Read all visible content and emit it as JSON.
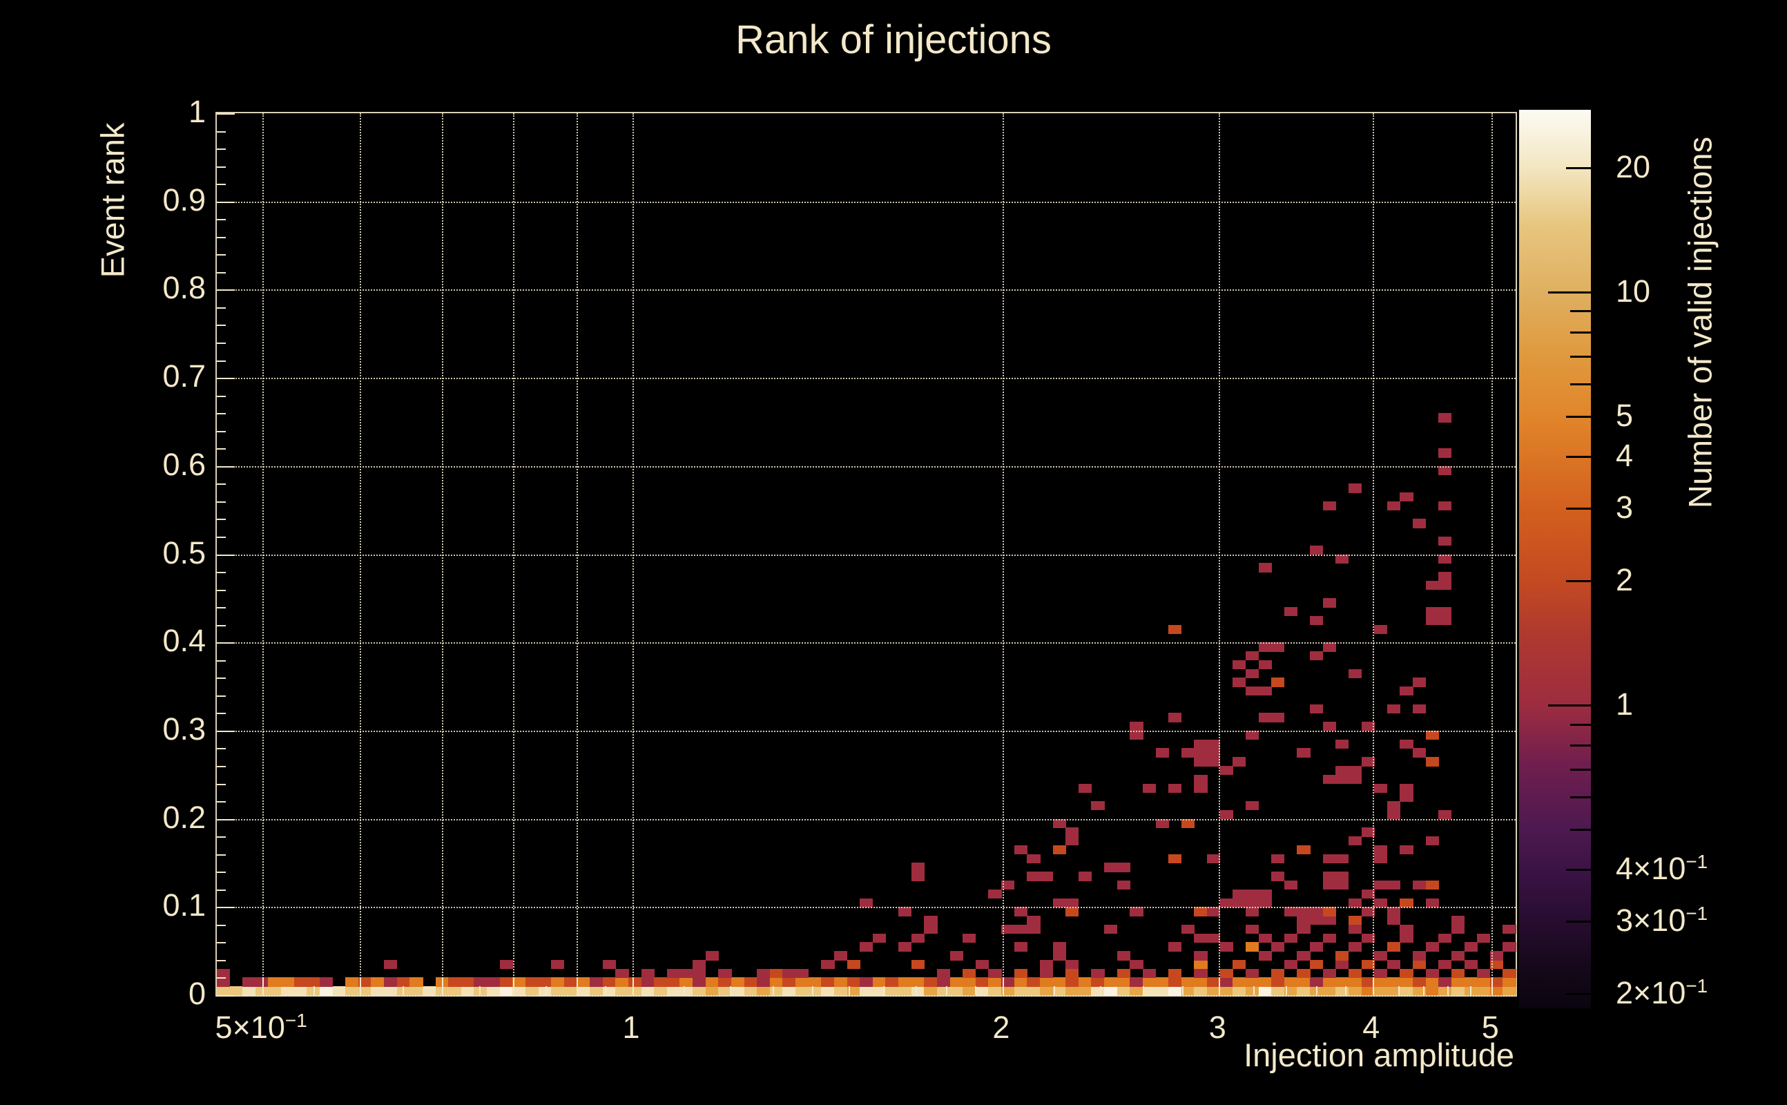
{
  "page": {
    "background": "#000000",
    "text_color": "#f3e8c9"
  },
  "chart_data": {
    "type": "heatmap",
    "title": "Rank of injections",
    "xlabel": "Injection amplitude",
    "ylabel": "Event rank",
    "zlabel": "Number of valid injections",
    "x_scale": "log",
    "x_range": [
      0.459,
      5.23
    ],
    "y_scale": "linear",
    "y_range": [
      0,
      1
    ],
    "z_scale": "log",
    "z_range": [
      0.184,
      27.5
    ],
    "grid": "dotted",
    "legend_position": "right-colorbar",
    "x_ticks": [
      {
        "v": 0.5,
        "m": "5×10",
        "e": "−1"
      },
      {
        "v": 1,
        "m": "1"
      },
      {
        "v": 2,
        "m": "2"
      },
      {
        "v": 3,
        "m": "3"
      },
      {
        "v": 4,
        "m": "4"
      },
      {
        "v": 5,
        "m": "5"
      }
    ],
    "x_grid": [
      0.5,
      0.6,
      0.7,
      0.8,
      0.9,
      1,
      2,
      3,
      4,
      5
    ],
    "x_minor_ticks": [
      0.55,
      0.65,
      0.75,
      0.85,
      0.95,
      1.1,
      1.2,
      1.3,
      1.4,
      1.5,
      1.6,
      1.7,
      1.8,
      1.9,
      2.2,
      2.4,
      2.6,
      2.8,
      3.2,
      3.4,
      3.6,
      3.8,
      4.2,
      4.4,
      4.6,
      4.8
    ],
    "y_ticks": [
      {
        "v": 0,
        "m": "0"
      },
      {
        "v": 0.1,
        "m": "0.1"
      },
      {
        "v": 0.2,
        "m": "0.2"
      },
      {
        "v": 0.3,
        "m": "0.3"
      },
      {
        "v": 0.4,
        "m": "0.4"
      },
      {
        "v": 0.5,
        "m": "0.5"
      },
      {
        "v": 0.6,
        "m": "0.6"
      },
      {
        "v": 0.7,
        "m": "0.7"
      },
      {
        "v": 0.8,
        "m": "0.8"
      },
      {
        "v": 0.9,
        "m": "0.9"
      },
      {
        "v": 1,
        "m": "1"
      }
    ],
    "y_grid": [
      0,
      0.1,
      0.2,
      0.3,
      0.4,
      0.5,
      0.6,
      0.7,
      0.8,
      0.9
    ],
    "y_minor_step": 0.02,
    "z_ticks": [
      {
        "v": 20,
        "m": "20"
      },
      {
        "v": 10,
        "m": "10",
        "long": true
      },
      {
        "v": 5,
        "m": "5"
      },
      {
        "v": 4,
        "m": "4"
      },
      {
        "v": 3,
        "m": "3"
      },
      {
        "v": 2,
        "m": "2"
      },
      {
        "v": 1,
        "m": "1",
        "long": true
      },
      {
        "v": 0.4,
        "m": "4×10",
        "e": "−1"
      },
      {
        "v": 0.3,
        "m": "3×10",
        "e": "−1"
      },
      {
        "v": 0.2,
        "m": "2×10",
        "e": "−1"
      }
    ],
    "z_minor_ticks": [
      9,
      8,
      7,
      6,
      0.9,
      0.8,
      0.7,
      0.6,
      0.5
    ],
    "palette_stops": [
      [
        0,
        "#fcfaf3"
      ],
      [
        0.064,
        "#f3e6c1"
      ],
      [
        0.13,
        "#e7c57e"
      ],
      [
        0.202,
        "#dfb061"
      ],
      [
        0.27,
        "#e09a40"
      ],
      [
        0.34,
        "#e1862b"
      ],
      [
        0.443,
        "#d3601e"
      ],
      [
        0.523,
        "#c44a21"
      ],
      [
        0.58,
        "#b03a2e"
      ],
      [
        0.662,
        "#9d2c40"
      ],
      [
        0.73,
        "#6f1e4e"
      ],
      [
        0.8,
        "#4d1950"
      ],
      [
        0.845,
        "#3c1345"
      ],
      [
        0.9,
        "#280d31"
      ],
      [
        0.96,
        "#130818"
      ],
      [
        1,
        "#0a0510"
      ]
    ],
    "count_level_colors": {
      "1": "#a02d3f",
      "2": "#c7481f",
      "3": "#e07b1f",
      "4": "#e6a648",
      "5": "#ebc87e",
      "6": "#f3e2b8",
      "7": "#faf3e2"
    },
    "n_cols": 101,
    "n_rows": 100,
    "bottom_row": [
      5,
      5,
      6,
      5,
      5,
      6,
      6,
      5,
      7,
      6,
      5,
      5,
      6,
      6,
      5,
      5,
      6,
      5,
      5,
      6,
      5,
      6,
      7,
      6,
      5,
      6,
      5,
      5,
      6,
      5,
      6,
      5,
      5,
      6,
      5,
      6,
      6,
      5,
      4,
      5,
      6,
      5,
      4,
      5,
      6,
      5,
      5,
      6,
      5,
      4,
      6,
      6,
      5,
      5,
      6,
      4,
      5,
      5,
      4,
      6,
      5,
      4,
      5,
      5,
      4,
      5,
      4,
      4,
      6,
      7,
      5,
      4,
      6,
      6,
      7,
      4,
      5,
      4,
      4,
      5,
      4,
      7,
      5,
      4,
      5,
      4,
      4,
      5,
      4,
      3,
      4,
      4,
      5,
      4,
      3,
      4,
      5,
      4,
      4,
      3,
      4
    ],
    "row1": [
      1,
      0,
      1,
      1,
      3,
      3,
      2,
      2,
      1,
      0,
      3,
      2,
      3,
      1,
      2,
      3,
      0,
      3,
      2,
      2,
      1,
      1,
      2,
      3,
      2,
      2,
      3,
      2,
      3,
      1,
      2,
      3,
      2,
      1,
      2,
      2,
      3,
      1,
      3,
      2,
      3,
      2,
      1,
      3,
      2,
      3,
      3,
      2,
      3,
      2,
      1,
      3,
      2,
      3,
      3,
      2,
      1,
      3,
      3,
      2,
      3,
      1,
      3,
      2,
      3,
      3,
      2,
      3,
      2,
      3,
      3,
      1,
      3,
      3,
      2,
      3,
      3,
      2,
      1,
      3,
      3,
      3,
      2,
      3,
      3,
      1,
      3,
      3,
      3,
      2,
      3,
      3,
      3,
      2,
      3,
      1,
      3,
      3,
      3,
      2,
      3
    ],
    "cells": [
      [
        0,
        2,
        1
      ],
      [
        31,
        2,
        1
      ],
      [
        33,
        2,
        1
      ],
      [
        35,
        2,
        1
      ],
      [
        36,
        2,
        1
      ],
      [
        37,
        2,
        1
      ],
      [
        39,
        2,
        1
      ],
      [
        42,
        2,
        1
      ],
      [
        43,
        2,
        2
      ],
      [
        44,
        2,
        1
      ],
      [
        45,
        2,
        1
      ],
      [
        56,
        2,
        1
      ],
      [
        58,
        2,
        2
      ],
      [
        60,
        2,
        1
      ],
      [
        62,
        2,
        2
      ],
      [
        64,
        2,
        1
      ],
      [
        66,
        2,
        2
      ],
      [
        68,
        2,
        1
      ],
      [
        70,
        2,
        2
      ],
      [
        72,
        2,
        1
      ],
      [
        74,
        2,
        2
      ],
      [
        76,
        2,
        1
      ],
      [
        78,
        2,
        2
      ],
      [
        80,
        2,
        1
      ],
      [
        82,
        2,
        2
      ],
      [
        84,
        2,
        2
      ],
      [
        86,
        2,
        1
      ],
      [
        88,
        2,
        2
      ],
      [
        90,
        2,
        1
      ],
      [
        92,
        2,
        2
      ],
      [
        94,
        2,
        1
      ],
      [
        96,
        2,
        2
      ],
      [
        98,
        2,
        1
      ],
      [
        100,
        2,
        2
      ],
      [
        13,
        3,
        1
      ],
      [
        22,
        3,
        1
      ],
      [
        26,
        3,
        1
      ],
      [
        30,
        3,
        1
      ],
      [
        37,
        3,
        1
      ],
      [
        47,
        3,
        1
      ],
      [
        49,
        3,
        2
      ],
      [
        54,
        3,
        2
      ],
      [
        59,
        3,
        1
      ],
      [
        64,
        3,
        1
      ],
      [
        66,
        3,
        1
      ],
      [
        71,
        3,
        1
      ],
      [
        76,
        3,
        3
      ],
      [
        79,
        3,
        2
      ],
      [
        83,
        3,
        1
      ],
      [
        85,
        3,
        2
      ],
      [
        87,
        3,
        1
      ],
      [
        89,
        3,
        2
      ],
      [
        91,
        3,
        1
      ],
      [
        93,
        3,
        2
      ],
      [
        95,
        3,
        1
      ],
      [
        97,
        3,
        1
      ],
      [
        99,
        3,
        2
      ],
      [
        38,
        4,
        1
      ],
      [
        48,
        4,
        1
      ],
      [
        57,
        4,
        1
      ],
      [
        65,
        4,
        1
      ],
      [
        70,
        4,
        1
      ],
      [
        76,
        4,
        1
      ],
      [
        81,
        4,
        1
      ],
      [
        84,
        4,
        1
      ],
      [
        87,
        4,
        2
      ],
      [
        90,
        4,
        1
      ],
      [
        93,
        4,
        1
      ],
      [
        96,
        4,
        1
      ],
      [
        99,
        4,
        1
      ],
      [
        50,
        5,
        1
      ],
      [
        53,
        5,
        1
      ],
      [
        62,
        5,
        1
      ],
      [
        65,
        5,
        1
      ],
      [
        74,
        5,
        1
      ],
      [
        78,
        5,
        1
      ],
      [
        80,
        5,
        3
      ],
      [
        82,
        5,
        1
      ],
      [
        85,
        5,
        1
      ],
      [
        88,
        5,
        1
      ],
      [
        91,
        5,
        2
      ],
      [
        94,
        5,
        1
      ],
      [
        97,
        5,
        1
      ],
      [
        100,
        5,
        1
      ],
      [
        51,
        6,
        1
      ],
      [
        54,
        6,
        1
      ],
      [
        58,
        6,
        1
      ],
      [
        76,
        6,
        1
      ],
      [
        77,
        6,
        1
      ],
      [
        81,
        6,
        1
      ],
      [
        83,
        6,
        1
      ],
      [
        86,
        6,
        1
      ],
      [
        89,
        6,
        1
      ],
      [
        92,
        6,
        1
      ],
      [
        95,
        6,
        1
      ],
      [
        98,
        6,
        1
      ],
      [
        55,
        7,
        1
      ],
      [
        61,
        7,
        1
      ],
      [
        62,
        7,
        1
      ],
      [
        63,
        7,
        1
      ],
      [
        69,
        7,
        1
      ],
      [
        75,
        7,
        1
      ],
      [
        80,
        7,
        1
      ],
      [
        84,
        7,
        1
      ],
      [
        88,
        7,
        1
      ],
      [
        92,
        7,
        1
      ],
      [
        96,
        7,
        1
      ],
      [
        100,
        7,
        1
      ],
      [
        55,
        8,
        1
      ],
      [
        63,
        8,
        1
      ],
      [
        84,
        8,
        1
      ],
      [
        85,
        8,
        1
      ],
      [
        86,
        8,
        1
      ],
      [
        88,
        8,
        2
      ],
      [
        91,
        8,
        1
      ],
      [
        96,
        8,
        1
      ],
      [
        53,
        9,
        1
      ],
      [
        62,
        9,
        1
      ],
      [
        66,
        9,
        2
      ],
      [
        71,
        9,
        1
      ],
      [
        76,
        9,
        2
      ],
      [
        77,
        9,
        1
      ],
      [
        80,
        9,
        1
      ],
      [
        83,
        9,
        1
      ],
      [
        84,
        9,
        1
      ],
      [
        85,
        9,
        1
      ],
      [
        86,
        9,
        2
      ],
      [
        89,
        9,
        1
      ],
      [
        91,
        9,
        1
      ],
      [
        50,
        10,
        1
      ],
      [
        65,
        10,
        1
      ],
      [
        66,
        10,
        1
      ],
      [
        78,
        10,
        1
      ],
      [
        79,
        10,
        1
      ],
      [
        80,
        10,
        1
      ],
      [
        81,
        10,
        1
      ],
      [
        88,
        10,
        1
      ],
      [
        90,
        10,
        1
      ],
      [
        92,
        10,
        2
      ],
      [
        94,
        10,
        1
      ],
      [
        60,
        11,
        1
      ],
      [
        79,
        11,
        1
      ],
      [
        80,
        11,
        1
      ],
      [
        81,
        11,
        1
      ],
      [
        89,
        11,
        1
      ],
      [
        61,
        12,
        1
      ],
      [
        70,
        12,
        1
      ],
      [
        83,
        12,
        1
      ],
      [
        86,
        12,
        1
      ],
      [
        87,
        12,
        1
      ],
      [
        90,
        12,
        1
      ],
      [
        91,
        12,
        1
      ],
      [
        93,
        12,
        1
      ],
      [
        94,
        12,
        2
      ],
      [
        54,
        13,
        1
      ],
      [
        63,
        13,
        1
      ],
      [
        64,
        13,
        1
      ],
      [
        67,
        13,
        1
      ],
      [
        82,
        13,
        1
      ],
      [
        86,
        13,
        1
      ],
      [
        87,
        13,
        1
      ],
      [
        54,
        14,
        1
      ],
      [
        69,
        14,
        1
      ],
      [
        70,
        14,
        1
      ],
      [
        63,
        15,
        1
      ],
      [
        74,
        15,
        2
      ],
      [
        77,
        15,
        1
      ],
      [
        82,
        15,
        1
      ],
      [
        86,
        15,
        1
      ],
      [
        87,
        15,
        1
      ],
      [
        90,
        15,
        1
      ],
      [
        62,
        16,
        1
      ],
      [
        65,
        16,
        2
      ],
      [
        84,
        16,
        2
      ],
      [
        90,
        16,
        1
      ],
      [
        92,
        16,
        1
      ],
      [
        66,
        17,
        1
      ],
      [
        88,
        17,
        1
      ],
      [
        94,
        17,
        1
      ],
      [
        66,
        18,
        1
      ],
      [
        89,
        18,
        1
      ],
      [
        65,
        19,
        1
      ],
      [
        73,
        19,
        1
      ],
      [
        75,
        19,
        2
      ],
      [
        78,
        20,
        1
      ],
      [
        91,
        20,
        1
      ],
      [
        95,
        20,
        1
      ],
      [
        68,
        21,
        1
      ],
      [
        80,
        21,
        1
      ],
      [
        91,
        21,
        1
      ],
      [
        92,
        22,
        1
      ],
      [
        67,
        23,
        1
      ],
      [
        72,
        23,
        1
      ],
      [
        74,
        23,
        1
      ],
      [
        76,
        23,
        1
      ],
      [
        90,
        23,
        1
      ],
      [
        92,
        23,
        1
      ],
      [
        76,
        24,
        1
      ],
      [
        86,
        24,
        1
      ],
      [
        87,
        24,
        1
      ],
      [
        88,
        24,
        1
      ],
      [
        78,
        25,
        1
      ],
      [
        87,
        25,
        1
      ],
      [
        88,
        25,
        1
      ],
      [
        76,
        26,
        1
      ],
      [
        77,
        26,
        1
      ],
      [
        79,
        26,
        1
      ],
      [
        89,
        26,
        1
      ],
      [
        94,
        26,
        2
      ],
      [
        73,
        27,
        1
      ],
      [
        75,
        27,
        1
      ],
      [
        76,
        27,
        1
      ],
      [
        77,
        27,
        1
      ],
      [
        84,
        27,
        1
      ],
      [
        93,
        27,
        1
      ],
      [
        76,
        28,
        1
      ],
      [
        77,
        28,
        1
      ],
      [
        87,
        28,
        1
      ],
      [
        92,
        28,
        1
      ],
      [
        71,
        29,
        1
      ],
      [
        80,
        29,
        1
      ],
      [
        94,
        29,
        2
      ],
      [
        71,
        30,
        1
      ],
      [
        86,
        30,
        1
      ],
      [
        89,
        30,
        1
      ],
      [
        74,
        31,
        1
      ],
      [
        81,
        31,
        1
      ],
      [
        82,
        31,
        1
      ],
      [
        85,
        32,
        1
      ],
      [
        91,
        32,
        1
      ],
      [
        93,
        32,
        1
      ],
      [
        80,
        34,
        1
      ],
      [
        81,
        34,
        1
      ],
      [
        92,
        34,
        1
      ],
      [
        79,
        35,
        1
      ],
      [
        82,
        35,
        2
      ],
      [
        93,
        35,
        1
      ],
      [
        80,
        36,
        1
      ],
      [
        88,
        36,
        1
      ],
      [
        79,
        37,
        1
      ],
      [
        81,
        37,
        1
      ],
      [
        80,
        38,
        1
      ],
      [
        85,
        38,
        1
      ],
      [
        81,
        39,
        1
      ],
      [
        82,
        39,
        1
      ],
      [
        86,
        39,
        1
      ],
      [
        74,
        41,
        2
      ],
      [
        90,
        41,
        1
      ],
      [
        85,
        42,
        1
      ],
      [
        94,
        42,
        1
      ],
      [
        95,
        42,
        1
      ],
      [
        83,
        43,
        1
      ],
      [
        94,
        43,
        1
      ],
      [
        95,
        43,
        1
      ],
      [
        86,
        44,
        1
      ],
      [
        94,
        46,
        1
      ],
      [
        95,
        46,
        1
      ],
      [
        95,
        47,
        1
      ],
      [
        81,
        48,
        1
      ],
      [
        87,
        49,
        1
      ],
      [
        95,
        49,
        1
      ],
      [
        85,
        50,
        1
      ],
      [
        95,
        51,
        1
      ],
      [
        93,
        53,
        1
      ],
      [
        86,
        55,
        1
      ],
      [
        91,
        55,
        1
      ],
      [
        95,
        55,
        1
      ],
      [
        92,
        56,
        1
      ],
      [
        88,
        57,
        1
      ],
      [
        95,
        59,
        1
      ],
      [
        95,
        61,
        1
      ],
      [
        95,
        65,
        1
      ]
    ]
  }
}
